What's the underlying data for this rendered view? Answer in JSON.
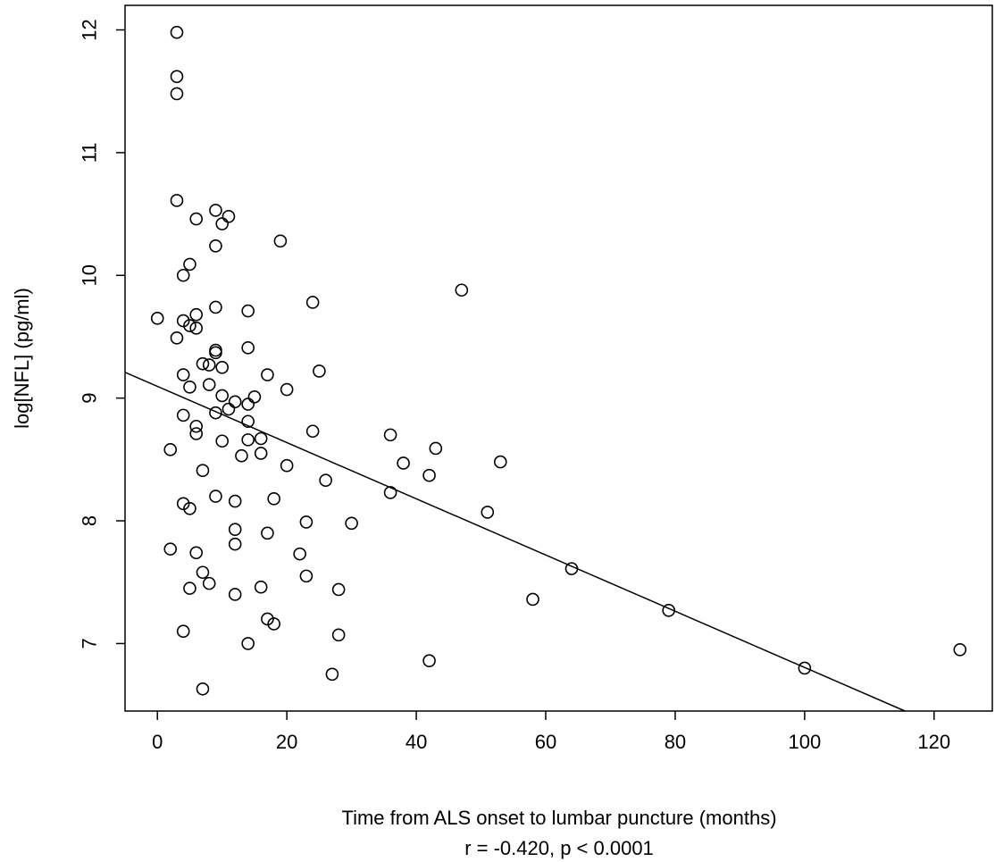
{
  "chart_data": {
    "type": "scatter",
    "title": "",
    "xlabel": "Time from ALS onset to lumbar puncture (months)",
    "ylabel": "log[NFL] (pg/ml)",
    "annotation": "r = -0.420, p < 0.0001",
    "xlim": [
      -5,
      129
    ],
    "ylim": [
      6.45,
      12.2
    ],
    "x_ticks": [
      0,
      20,
      40,
      60,
      80,
      100,
      120
    ],
    "y_ticks": [
      7,
      8,
      9,
      10,
      11,
      12
    ],
    "grid": false,
    "legend": "none",
    "regression_line": {
      "x": [
        -5,
        115.5
      ],
      "y": [
        9.21,
        6.43
      ]
    },
    "points": [
      {
        "x": 3,
        "y": 11.98
      },
      {
        "x": 3,
        "y": 11.62
      },
      {
        "x": 3,
        "y": 11.48
      },
      {
        "x": 3,
        "y": 10.61
      },
      {
        "x": 9,
        "y": 10.53
      },
      {
        "x": 11,
        "y": 10.48
      },
      {
        "x": 6,
        "y": 10.46
      },
      {
        "x": 10,
        "y": 10.42
      },
      {
        "x": 19,
        "y": 10.28
      },
      {
        "x": 9,
        "y": 10.24
      },
      {
        "x": 5,
        "y": 10.09
      },
      {
        "x": 4,
        "y": 10.0
      },
      {
        "x": 47,
        "y": 9.88
      },
      {
        "x": 24,
        "y": 9.78
      },
      {
        "x": 9,
        "y": 9.74
      },
      {
        "x": 14,
        "y": 9.71
      },
      {
        "x": 6,
        "y": 9.68
      },
      {
        "x": 0,
        "y": 9.65
      },
      {
        "x": 4,
        "y": 9.63
      },
      {
        "x": 5,
        "y": 9.59
      },
      {
        "x": 6,
        "y": 9.57
      },
      {
        "x": 3,
        "y": 9.49
      },
      {
        "x": 14,
        "y": 9.41
      },
      {
        "x": 9,
        "y": 9.39
      },
      {
        "x": 9,
        "y": 9.37
      },
      {
        "x": 7,
        "y": 9.28
      },
      {
        "x": 8,
        "y": 9.27
      },
      {
        "x": 10,
        "y": 9.25
      },
      {
        "x": 25,
        "y": 9.22
      },
      {
        "x": 4,
        "y": 9.19
      },
      {
        "x": 17,
        "y": 9.19
      },
      {
        "x": 8,
        "y": 9.11
      },
      {
        "x": 5,
        "y": 9.09
      },
      {
        "x": 20,
        "y": 9.07
      },
      {
        "x": 10,
        "y": 9.02
      },
      {
        "x": 15,
        "y": 9.01
      },
      {
        "x": 12,
        "y": 8.97
      },
      {
        "x": 14,
        "y": 8.95
      },
      {
        "x": 11,
        "y": 8.91
      },
      {
        "x": 9,
        "y": 8.88
      },
      {
        "x": 4,
        "y": 8.86
      },
      {
        "x": 14,
        "y": 8.81
      },
      {
        "x": 6,
        "y": 8.77
      },
      {
        "x": 24,
        "y": 8.73
      },
      {
        "x": 6,
        "y": 8.71
      },
      {
        "x": 36,
        "y": 8.7
      },
      {
        "x": 16,
        "y": 8.67
      },
      {
        "x": 14,
        "y": 8.66
      },
      {
        "x": 10,
        "y": 8.65
      },
      {
        "x": 43,
        "y": 8.59
      },
      {
        "x": 2,
        "y": 8.58
      },
      {
        "x": 16,
        "y": 8.55
      },
      {
        "x": 13,
        "y": 8.53
      },
      {
        "x": 53,
        "y": 8.48
      },
      {
        "x": 38,
        "y": 8.47
      },
      {
        "x": 20,
        "y": 8.45
      },
      {
        "x": 7,
        "y": 8.41
      },
      {
        "x": 42,
        "y": 8.37
      },
      {
        "x": 26,
        "y": 8.33
      },
      {
        "x": 36,
        "y": 8.23
      },
      {
        "x": 9,
        "y": 8.2
      },
      {
        "x": 18,
        "y": 8.18
      },
      {
        "x": 12,
        "y": 8.16
      },
      {
        "x": 4,
        "y": 8.14
      },
      {
        "x": 5,
        "y": 8.1
      },
      {
        "x": 51,
        "y": 8.07
      },
      {
        "x": 23,
        "y": 7.99
      },
      {
        "x": 30,
        "y": 7.98
      },
      {
        "x": 12,
        "y": 7.93
      },
      {
        "x": 17,
        "y": 7.9
      },
      {
        "x": 12,
        "y": 7.81
      },
      {
        "x": 2,
        "y": 7.77
      },
      {
        "x": 6,
        "y": 7.74
      },
      {
        "x": 22,
        "y": 7.73
      },
      {
        "x": 64,
        "y": 7.61
      },
      {
        "x": 7,
        "y": 7.58
      },
      {
        "x": 23,
        "y": 7.55
      },
      {
        "x": 8,
        "y": 7.49
      },
      {
        "x": 16,
        "y": 7.46
      },
      {
        "x": 5,
        "y": 7.45
      },
      {
        "x": 28,
        "y": 7.44
      },
      {
        "x": 12,
        "y": 7.4
      },
      {
        "x": 58,
        "y": 7.36
      },
      {
        "x": 79,
        "y": 7.27
      },
      {
        "x": 17,
        "y": 7.2
      },
      {
        "x": 18,
        "y": 7.16
      },
      {
        "x": 4,
        "y": 7.1
      },
      {
        "x": 28,
        "y": 7.07
      },
      {
        "x": 14,
        "y": 7.0
      },
      {
        "x": 124,
        "y": 6.95
      },
      {
        "x": 42,
        "y": 6.86
      },
      {
        "x": 100,
        "y": 6.8
      },
      {
        "x": 27,
        "y": 6.75
      },
      {
        "x": 7,
        "y": 6.63
      }
    ]
  }
}
